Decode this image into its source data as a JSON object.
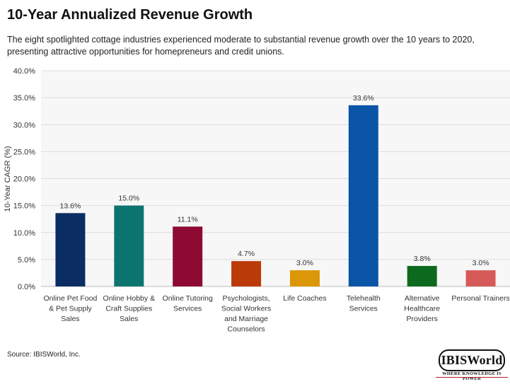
{
  "header": {
    "title": "10-Year Annualized Revenue Growth",
    "subtitle": "The eight spotlighted cottage industries experienced moderate to substantial revenue growth over the 10 years to 2020, presenting attractive opportunities for homepreneurs and credit unions."
  },
  "footer": {
    "source": "Source: IBISWorld, Inc.",
    "logo_text": "IBISWorld",
    "logo_tagline": "WHERE KNOWLEDGE IS POWER"
  },
  "chart_data": {
    "type": "bar",
    "title": "10-Year Annualized Revenue Growth",
    "ylabel": "10-Year CAGR (%)",
    "xlabel": "",
    "ylim": [
      0,
      40
    ],
    "yticks": [
      "0.0%",
      "5.0%",
      "10.0%",
      "15.0%",
      "20.0%",
      "25.0%",
      "30.0%",
      "35.0%",
      "40.0%"
    ],
    "grid": true,
    "categories": [
      [
        "Online Pet Food",
        "& Pet Supply",
        "Sales"
      ],
      [
        "Online Hobby &",
        "Craft Supplies",
        "Sales"
      ],
      [
        "Online Tutoring",
        "Services"
      ],
      [
        "Psychologists,",
        "Social Workers",
        "and Marriage",
        "Counselors"
      ],
      [
        "Life Coaches"
      ],
      [
        "Telehealth",
        "Services"
      ],
      [
        "Alternative",
        "Healthcare",
        "Providers"
      ],
      [
        "Personal Trainers"
      ]
    ],
    "values": [
      13.6,
      15.0,
      11.1,
      4.7,
      3.0,
      33.6,
      3.8,
      3.0
    ],
    "value_labels": [
      "13.6%",
      "15.0%",
      "11.1%",
      "4.7%",
      "3.0%",
      "33.6%",
      "3.8%",
      "3.0%"
    ],
    "colors": [
      "#0b2d63",
      "#0c7470",
      "#8e0a32",
      "#bb3a0a",
      "#dc9708",
      "#0a55a7",
      "#0c6a1e",
      "#d65b58"
    ]
  }
}
